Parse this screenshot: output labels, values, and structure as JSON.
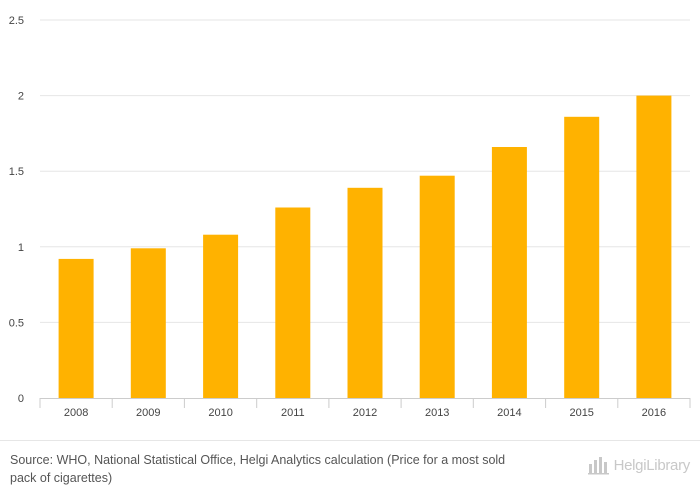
{
  "chart_data": {
    "type": "bar",
    "title": "",
    "xlabel": "",
    "ylabel": "",
    "categories": [
      "2008",
      "2009",
      "2010",
      "2011",
      "2012",
      "2013",
      "2014",
      "2015",
      "2016"
    ],
    "values": [
      0.92,
      0.99,
      1.08,
      1.26,
      1.39,
      1.47,
      1.66,
      1.86,
      2.0
    ],
    "ylim": [
      0,
      2.5
    ],
    "yticks": [
      "0",
      "0.5",
      "1",
      "1.5",
      "2",
      "2.5"
    ],
    "grid": true,
    "legend": "none",
    "colors": {
      "bar": "#ffb200",
      "grid": "#e6e6e6",
      "axis": "#cccccc"
    }
  },
  "footer": {
    "source_label": "Source:",
    "source_text": "WHO, National Statistical Office, Helgi Analytics calculation (Price for a most sold pack of cigarettes)",
    "brand": "HelgiLibrary",
    "brand_icon": "bar-chart-logo-icon"
  }
}
